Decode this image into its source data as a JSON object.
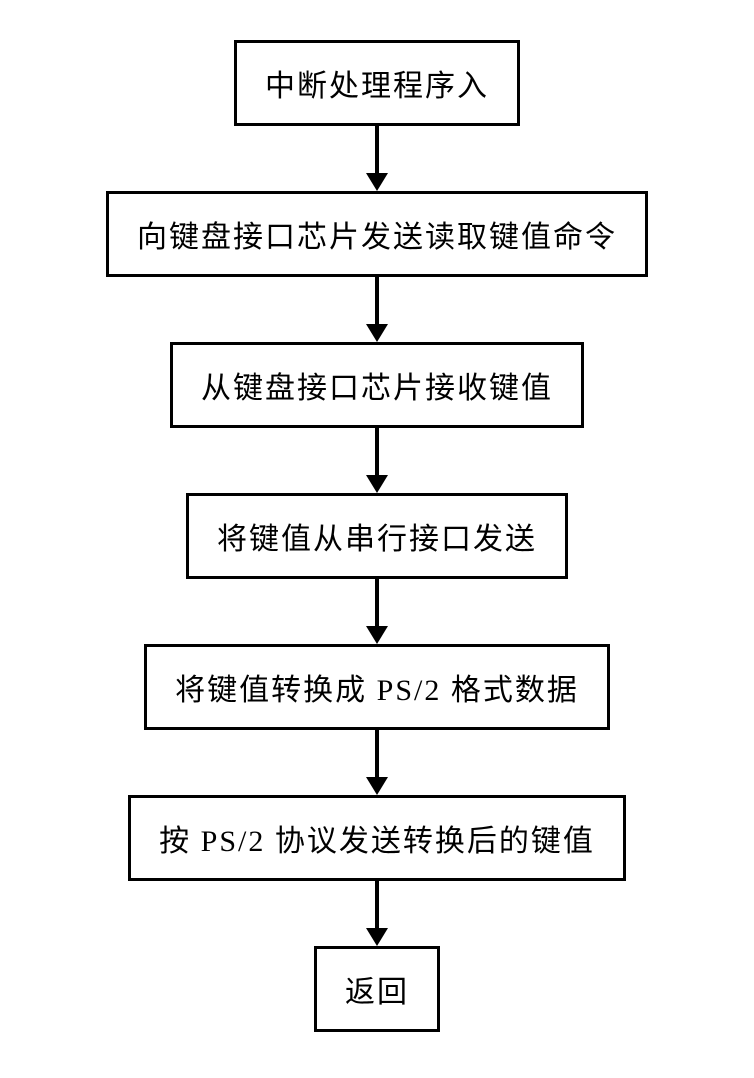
{
  "flowchart": {
    "type": "flowchart",
    "background_color": "#ffffff",
    "box_border_color": "#000000",
    "box_border_width": 3,
    "box_fill_color": "#ffffff",
    "text_color": "#000000",
    "font_size": 30,
    "font_family": "SimSun",
    "arrow_color": "#000000",
    "arrow_line_width": 4,
    "arrow_head_width": 22,
    "arrow_head_height": 18,
    "nodes": [
      {
        "id": "n1",
        "label": "中断处理程序入",
        "width_hint": 360,
        "arrow_after_length": 48
      },
      {
        "id": "n2",
        "label": "向键盘接口芯片发送读取键值命令",
        "width_hint": 620,
        "arrow_after_length": 48
      },
      {
        "id": "n3",
        "label": "从键盘接口芯片接收键值",
        "width_hint": 470,
        "arrow_after_length": 48
      },
      {
        "id": "n4",
        "label": "将键值从串行接口发送",
        "width_hint": 430,
        "arrow_after_length": 48
      },
      {
        "id": "n5",
        "label": "将键值转换成 PS/2 格式数据",
        "width_hint": 520,
        "arrow_after_length": 48
      },
      {
        "id": "n6",
        "label": "按 PS/2 协议发送转换后的键值",
        "width_hint": 560,
        "arrow_after_length": 48
      },
      {
        "id": "n7",
        "label": "返回",
        "width_hint": 170,
        "arrow_after_length": 0
      }
    ]
  }
}
